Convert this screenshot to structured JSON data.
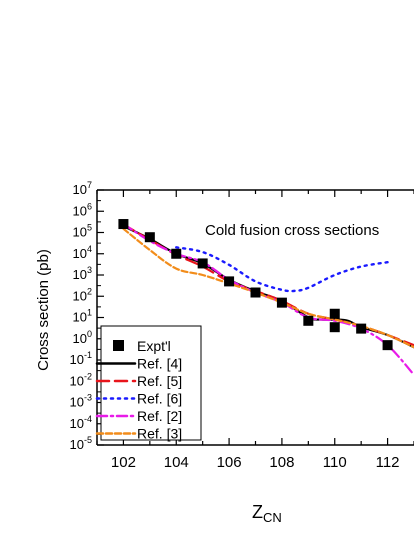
{
  "chart_data": {
    "type": "line",
    "annotation": "Cold fusion cross sections",
    "xlabel_main": "Z",
    "xlabel_sub": "CN",
    "ylabel": "Cross section (pb)",
    "xlim": [
      101,
      113
    ],
    "x_ticks": [
      102,
      104,
      106,
      108,
      110,
      112
    ],
    "y_log": true,
    "y_exponent_range": [
      -5,
      7
    ],
    "y_tick_base": "10",
    "legend_placement": "bottom-left",
    "experiment": {
      "name": "Expt'l",
      "color": "#000000",
      "points": [
        {
          "x": 102,
          "y": 250000
        },
        {
          "x": 103,
          "y": 60000
        },
        {
          "x": 104,
          "y": 10000
        },
        {
          "x": 105,
          "y": 3500
        },
        {
          "x": 106,
          "y": 500
        },
        {
          "x": 107,
          "y": 150
        },
        {
          "x": 108,
          "y": 50
        },
        {
          "x": 109,
          "y": 7
        },
        {
          "x": 110,
          "y": 15
        },
        {
          "x": 110,
          "y": 3.5
        },
        {
          "x": 111,
          "y": 3
        },
        {
          "x": 112,
          "y": 0.5
        }
      ]
    },
    "series": [
      {
        "name": "Ref. [4]",
        "color": "#000000",
        "dash": "solid",
        "x": [
          102,
          103,
          104,
          105,
          106,
          107,
          108,
          109,
          109.5,
          110,
          110.5,
          111,
          112,
          113
        ],
        "y": [
          200000,
          50000,
          10000,
          3500,
          600,
          170,
          60,
          10,
          8,
          8,
          7,
          3.5,
          1.5,
          0.4
        ]
      },
      {
        "name": "Ref. [5]",
        "color": "#e8141b",
        "dash": "long",
        "x": [
          102,
          103,
          104,
          105,
          106,
          107,
          108,
          109,
          110,
          111,
          112,
          113
        ],
        "y": [
          240000,
          45000,
          9000,
          2500,
          500,
          180,
          60,
          15,
          8,
          4,
          1.5,
          0.5
        ]
      },
      {
        "name": "Ref. [6]",
        "color": "#1a1aff",
        "dash": "dot",
        "x": [
          104,
          105,
          106,
          107,
          108,
          108.5,
          109,
          110,
          111,
          112
        ],
        "y": [
          20000,
          12000,
          3000,
          500,
          200,
          180,
          250,
          1000,
          2500,
          4000
        ]
      },
      {
        "name": "Ref. [2]",
        "color": "#e81be8",
        "dash": "dashdot",
        "x": [
          102,
          103,
          104,
          105,
          106,
          107,
          108,
          109,
          110,
          111,
          112,
          113
        ],
        "y": [
          250000,
          40000,
          10000,
          4000,
          600,
          150,
          50,
          10,
          7,
          3,
          0.5,
          0.02
        ]
      },
      {
        "name": "Ref. [3]",
        "color": "#f28c1a",
        "dash": "short",
        "x": [
          102,
          103,
          104,
          105,
          106,
          107,
          108,
          109,
          110,
          111,
          112,
          113
        ],
        "y": [
          150000,
          15000,
          2000,
          1000,
          400,
          150,
          50,
          15,
          8,
          4,
          1.5,
          0.4
        ]
      }
    ]
  }
}
